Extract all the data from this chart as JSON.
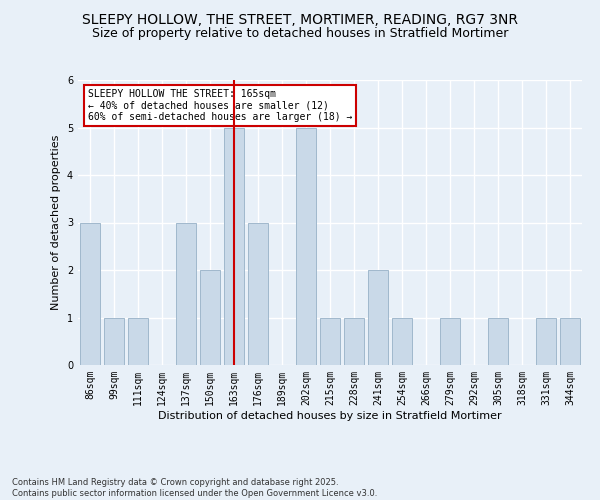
{
  "title1": "SLEEPY HOLLOW, THE STREET, MORTIMER, READING, RG7 3NR",
  "title2": "Size of property relative to detached houses in Stratfield Mortimer",
  "xlabel": "Distribution of detached houses by size in Stratfield Mortimer",
  "ylabel": "Number of detached properties",
  "categories": [
    "86sqm",
    "99sqm",
    "111sqm",
    "124sqm",
    "137sqm",
    "150sqm",
    "163sqm",
    "176sqm",
    "189sqm",
    "202sqm",
    "215sqm",
    "228sqm",
    "241sqm",
    "254sqm",
    "266sqm",
    "279sqm",
    "292sqm",
    "305sqm",
    "318sqm",
    "331sqm",
    "344sqm"
  ],
  "values": [
    3,
    1,
    1,
    0,
    3,
    2,
    5,
    3,
    0,
    5,
    1,
    1,
    2,
    1,
    0,
    1,
    0,
    1,
    0,
    1,
    1
  ],
  "bar_color": "#c9d9e8",
  "bar_edge_color": "#a0b8cc",
  "highlight_index": 6,
  "highlight_line_color": "#cc0000",
  "annotation_title": "SLEEPY HOLLOW THE STREET: 165sqm",
  "annotation_line1": "← 40% of detached houses are smaller (12)",
  "annotation_line2": "60% of semi-detached houses are larger (18) →",
  "annotation_box_color": "#ffffff",
  "annotation_edge_color": "#cc0000",
  "ylim": [
    0,
    6
  ],
  "yticks": [
    0,
    1,
    2,
    3,
    4,
    5,
    6
  ],
  "footer": "Contains HM Land Registry data © Crown copyright and database right 2025.\nContains public sector information licensed under the Open Government Licence v3.0.",
  "background_color": "#e8f0f8",
  "grid_color": "#ffffff",
  "title_fontsize": 10,
  "subtitle_fontsize": 9,
  "axis_label_fontsize": 8,
  "tick_fontsize": 7,
  "annotation_fontsize": 7,
  "footer_fontsize": 6
}
